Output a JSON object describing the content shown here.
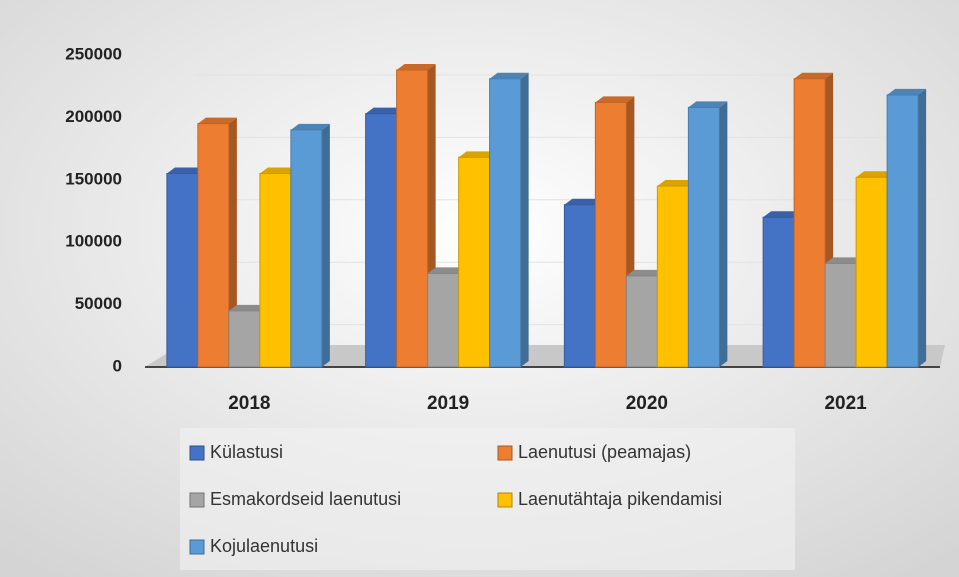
{
  "chart_data": {
    "type": "bar3d",
    "categories": [
      "2018",
      "2019",
      "2020",
      "2021"
    ],
    "series": [
      {
        "name": "Külastusi",
        "color": "#4472c4",
        "values": [
          155000,
          203000,
          130000,
          120000
        ]
      },
      {
        "name": "Laenutusi (peamajas)",
        "color": "#ed7d31",
        "values": [
          195000,
          238000,
          212000,
          231000
        ]
      },
      {
        "name": "Esmakordseid laenutusi",
        "color": "#a5a5a5",
        "values": [
          45000,
          75000,
          73000,
          83000
        ]
      },
      {
        "name": "Laenutähtaja pikendamisi",
        "color": "#ffc000",
        "values": [
          155000,
          168000,
          145000,
          152000
        ]
      },
      {
        "name": "Kojulaenutusi",
        "color": "#5b9bd5",
        "values": [
          190000,
          231000,
          208000,
          218000
        ]
      }
    ],
    "ylim": [
      0,
      250000
    ],
    "yticks": [
      0,
      50000,
      100000,
      150000,
      200000,
      250000
    ],
    "grid": true
  }
}
